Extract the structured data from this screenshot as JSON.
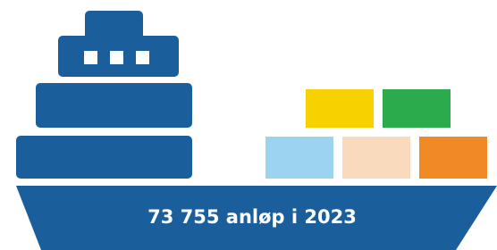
{
  "caption": "73 755 anløp i 2023"
}
